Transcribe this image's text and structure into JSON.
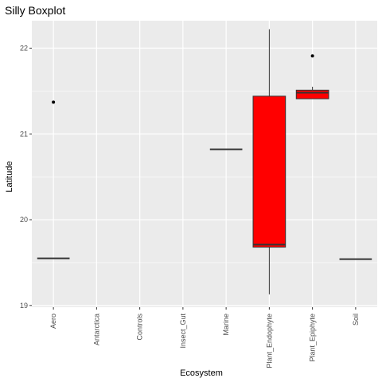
{
  "chart_data": {
    "type": "boxplot",
    "title": "Silly Boxplot",
    "xlabel": "Ecosystem",
    "ylabel": "Latitude",
    "ylim": [
      18.98,
      22.32
    ],
    "yticks": [
      19,
      20,
      21,
      22
    ],
    "grid": true,
    "categories": [
      "Aero",
      "Antarctica",
      "Controls",
      "Insect_Gut",
      "Marine",
      "Plant_Endophyte",
      "Plant_Epiphyte",
      "Soil"
    ],
    "boxes": [
      {
        "category": "Aero",
        "min": 19.55,
        "q1": 19.55,
        "median": 19.55,
        "q3": 19.55,
        "max": 19.55,
        "outliers": [
          21.37
        ]
      },
      {
        "category": "Antarctica",
        "min": null,
        "q1": null,
        "median": null,
        "q3": null,
        "max": null,
        "outliers": []
      },
      {
        "category": "Controls",
        "min": null,
        "q1": null,
        "median": null,
        "q3": null,
        "max": null,
        "outliers": []
      },
      {
        "category": "Insect_Gut",
        "min": null,
        "q1": null,
        "median": null,
        "q3": null,
        "max": null,
        "outliers": []
      },
      {
        "category": "Marine",
        "min": 20.82,
        "q1": 20.82,
        "median": 20.82,
        "q3": 20.82,
        "max": 20.82,
        "outliers": []
      },
      {
        "category": "Plant_Endophyte",
        "min": 19.13,
        "q1": 19.68,
        "median": 19.71,
        "q3": 21.44,
        "max": 22.22,
        "outliers": []
      },
      {
        "category": "Plant_Epiphyte",
        "min": 21.41,
        "q1": 21.41,
        "median": 21.48,
        "q3": 21.51,
        "max": 21.55,
        "outliers": [
          21.91
        ]
      },
      {
        "category": "Soil",
        "min": 19.54,
        "q1": 19.54,
        "median": 19.54,
        "q3": 19.54,
        "max": 19.54,
        "outliers": []
      }
    ],
    "colors": {
      "box_fill": "#ff0000",
      "box_stroke": "#333333",
      "panel_bg": "#ebebeb",
      "grid": "#ffffff",
      "tick_label": "#4d4d4d"
    }
  }
}
